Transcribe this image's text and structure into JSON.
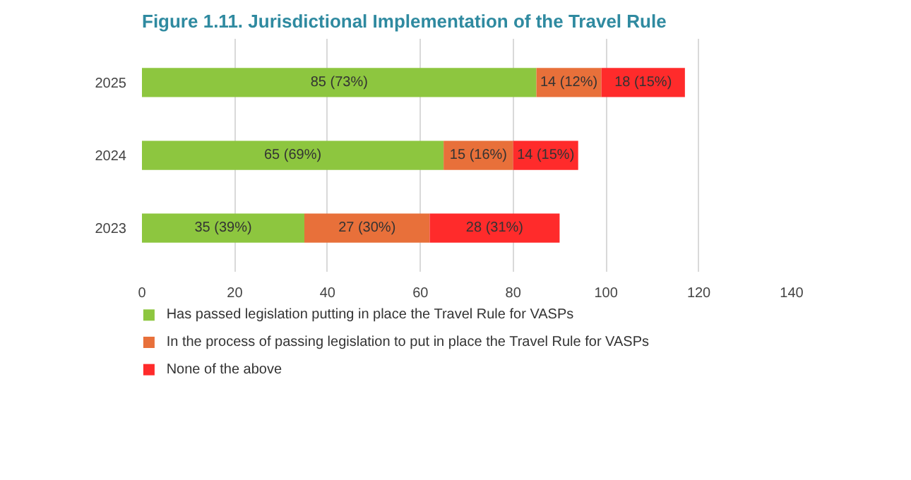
{
  "chart_data": {
    "type": "bar",
    "orientation": "horizontal",
    "stacked": true,
    "title": "Figure 1.11. Jurisdictional Implementation of the Travel Rule",
    "categories": [
      "2025",
      "2024",
      "2023"
    ],
    "series": [
      {
        "name": "Has passed legislation putting in place the Travel Rule for VASPs",
        "color": "#8dc63f",
        "values": [
          85,
          65,
          35
        ],
        "value_labels": [
          "85 (73%)",
          "65 (69%)",
          "35 (39%)"
        ]
      },
      {
        "name": "In the process of passing legislation to put in place the Travel Rule for VASPs",
        "color": "#e8703a",
        "values": [
          14,
          15,
          27
        ],
        "value_labels": [
          "14 (12%)",
          "15 (16%)",
          "27 (30%)"
        ]
      },
      {
        "name": "None of the above",
        "color": "#ff2b2b",
        "values": [
          18,
          14,
          28
        ],
        "value_labels": [
          "18 (15%)",
          "14 (15%)",
          "28 (31%)"
        ]
      }
    ],
    "xlim": [
      0,
      140
    ],
    "xticks": [
      0,
      20,
      40,
      60,
      80,
      100,
      120,
      140
    ],
    "grid": "x",
    "legend": "bottom"
  }
}
